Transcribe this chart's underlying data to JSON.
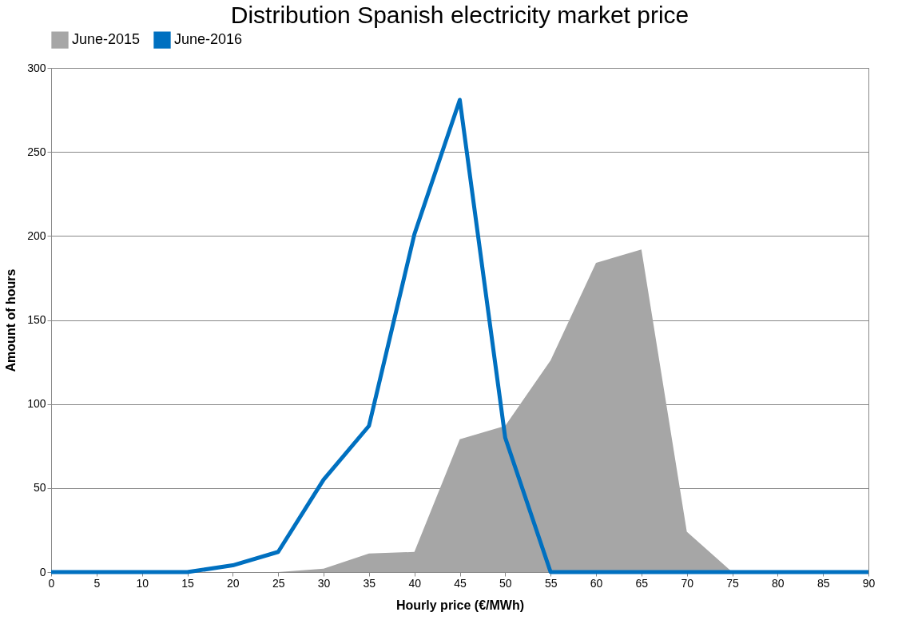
{
  "chart_data": {
    "type": "area",
    "title": "Distribution Spanish electricity market price",
    "xlabel": "Hourly price (€/MWh)",
    "ylabel": "Amount of hours",
    "x": [
      0,
      5,
      10,
      15,
      20,
      25,
      30,
      35,
      40,
      45,
      50,
      55,
      60,
      65,
      70,
      75,
      80,
      85,
      90
    ],
    "series": [
      {
        "name": "June-2015",
        "color": "#a6a6a6",
        "values": [
          0,
          0,
          0,
          0,
          0,
          0,
          2,
          11,
          12,
          79,
          87,
          126,
          184,
          192,
          24,
          0,
          0,
          0,
          0
        ]
      },
      {
        "name": "June-2016",
        "type": "line",
        "color": "#0070c0",
        "values": [
          0,
          0,
          0,
          0,
          4,
          12,
          55,
          87,
          201,
          281,
          80,
          0,
          0,
          0,
          0,
          0,
          0,
          0,
          0
        ]
      }
    ],
    "xlim": [
      0,
      90
    ],
    "xticks": [
      0,
      5,
      10,
      15,
      20,
      25,
      30,
      35,
      40,
      45,
      50,
      55,
      60,
      65,
      70,
      75,
      80,
      85,
      90
    ],
    "ylim": [
      0,
      300
    ],
    "yticks": [
      0,
      50,
      100,
      150,
      200,
      250,
      300
    ],
    "grid": "y",
    "legend": "top",
    "marker": "none",
    "line_style": "solid"
  }
}
